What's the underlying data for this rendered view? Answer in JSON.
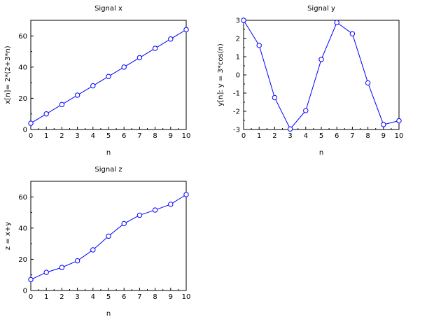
{
  "chart_data": [
    {
      "type": "line",
      "title": "Signal x",
      "xlabel": "n",
      "ylabel": "x[n]= 2*(2+3*n)",
      "xlim": [
        0,
        10
      ],
      "ylim": [
        0,
        70
      ],
      "xticks": [
        0,
        1,
        2,
        3,
        4,
        5,
        6,
        7,
        8,
        9,
        10
      ],
      "yticks": [
        0,
        20,
        40,
        60
      ],
      "series": [
        {
          "x": [
            0,
            1,
            2,
            3,
            4,
            5,
            6,
            7,
            8,
            9,
            10
          ],
          "values": [
            4,
            10,
            16,
            22,
            28,
            34,
            40,
            46,
            52,
            58,
            64
          ]
        }
      ],
      "marker": "circle",
      "color": "#0000ff",
      "grid": false
    },
    {
      "type": "line",
      "title": "Signal y",
      "xlabel": "n",
      "ylabel": "y[n]:  y = 3*cos(n)",
      "xlim": [
        0,
        10
      ],
      "ylim": [
        -3,
        3
      ],
      "xticks": [
        0,
        1,
        2,
        3,
        4,
        5,
        6,
        7,
        8,
        9,
        10
      ],
      "yticks": [
        -3,
        -2,
        -1,
        0,
        1,
        2,
        3
      ],
      "series": [
        {
          "x": [
            0,
            1,
            2,
            3,
            4,
            5,
            6,
            7,
            8,
            9,
            10
          ],
          "values": [
            3,
            1.62,
            -1.25,
            -2.97,
            -1.96,
            0.85,
            2.88,
            2.26,
            -0.44,
            -2.73,
            -2.52
          ]
        }
      ],
      "marker": "circle",
      "color": "#0000ff",
      "grid": false
    },
    {
      "type": "line",
      "title": "Signal z",
      "xlabel": "n",
      "ylabel": "z = x+y",
      "xlim": [
        0,
        10
      ],
      "ylim": [
        0,
        70
      ],
      "xticks": [
        0,
        1,
        2,
        3,
        4,
        5,
        6,
        7,
        8,
        9,
        10
      ],
      "yticks": [
        0,
        20,
        40,
        60
      ],
      "series": [
        {
          "x": [
            0,
            1,
            2,
            3,
            4,
            5,
            6,
            7,
            8,
            9,
            10
          ],
          "values": [
            7,
            11.62,
            14.75,
            19.03,
            26.04,
            34.85,
            42.88,
            48.26,
            51.56,
            55.27,
            61.48
          ]
        }
      ],
      "marker": "circle",
      "color": "#0000ff",
      "grid": false
    }
  ]
}
